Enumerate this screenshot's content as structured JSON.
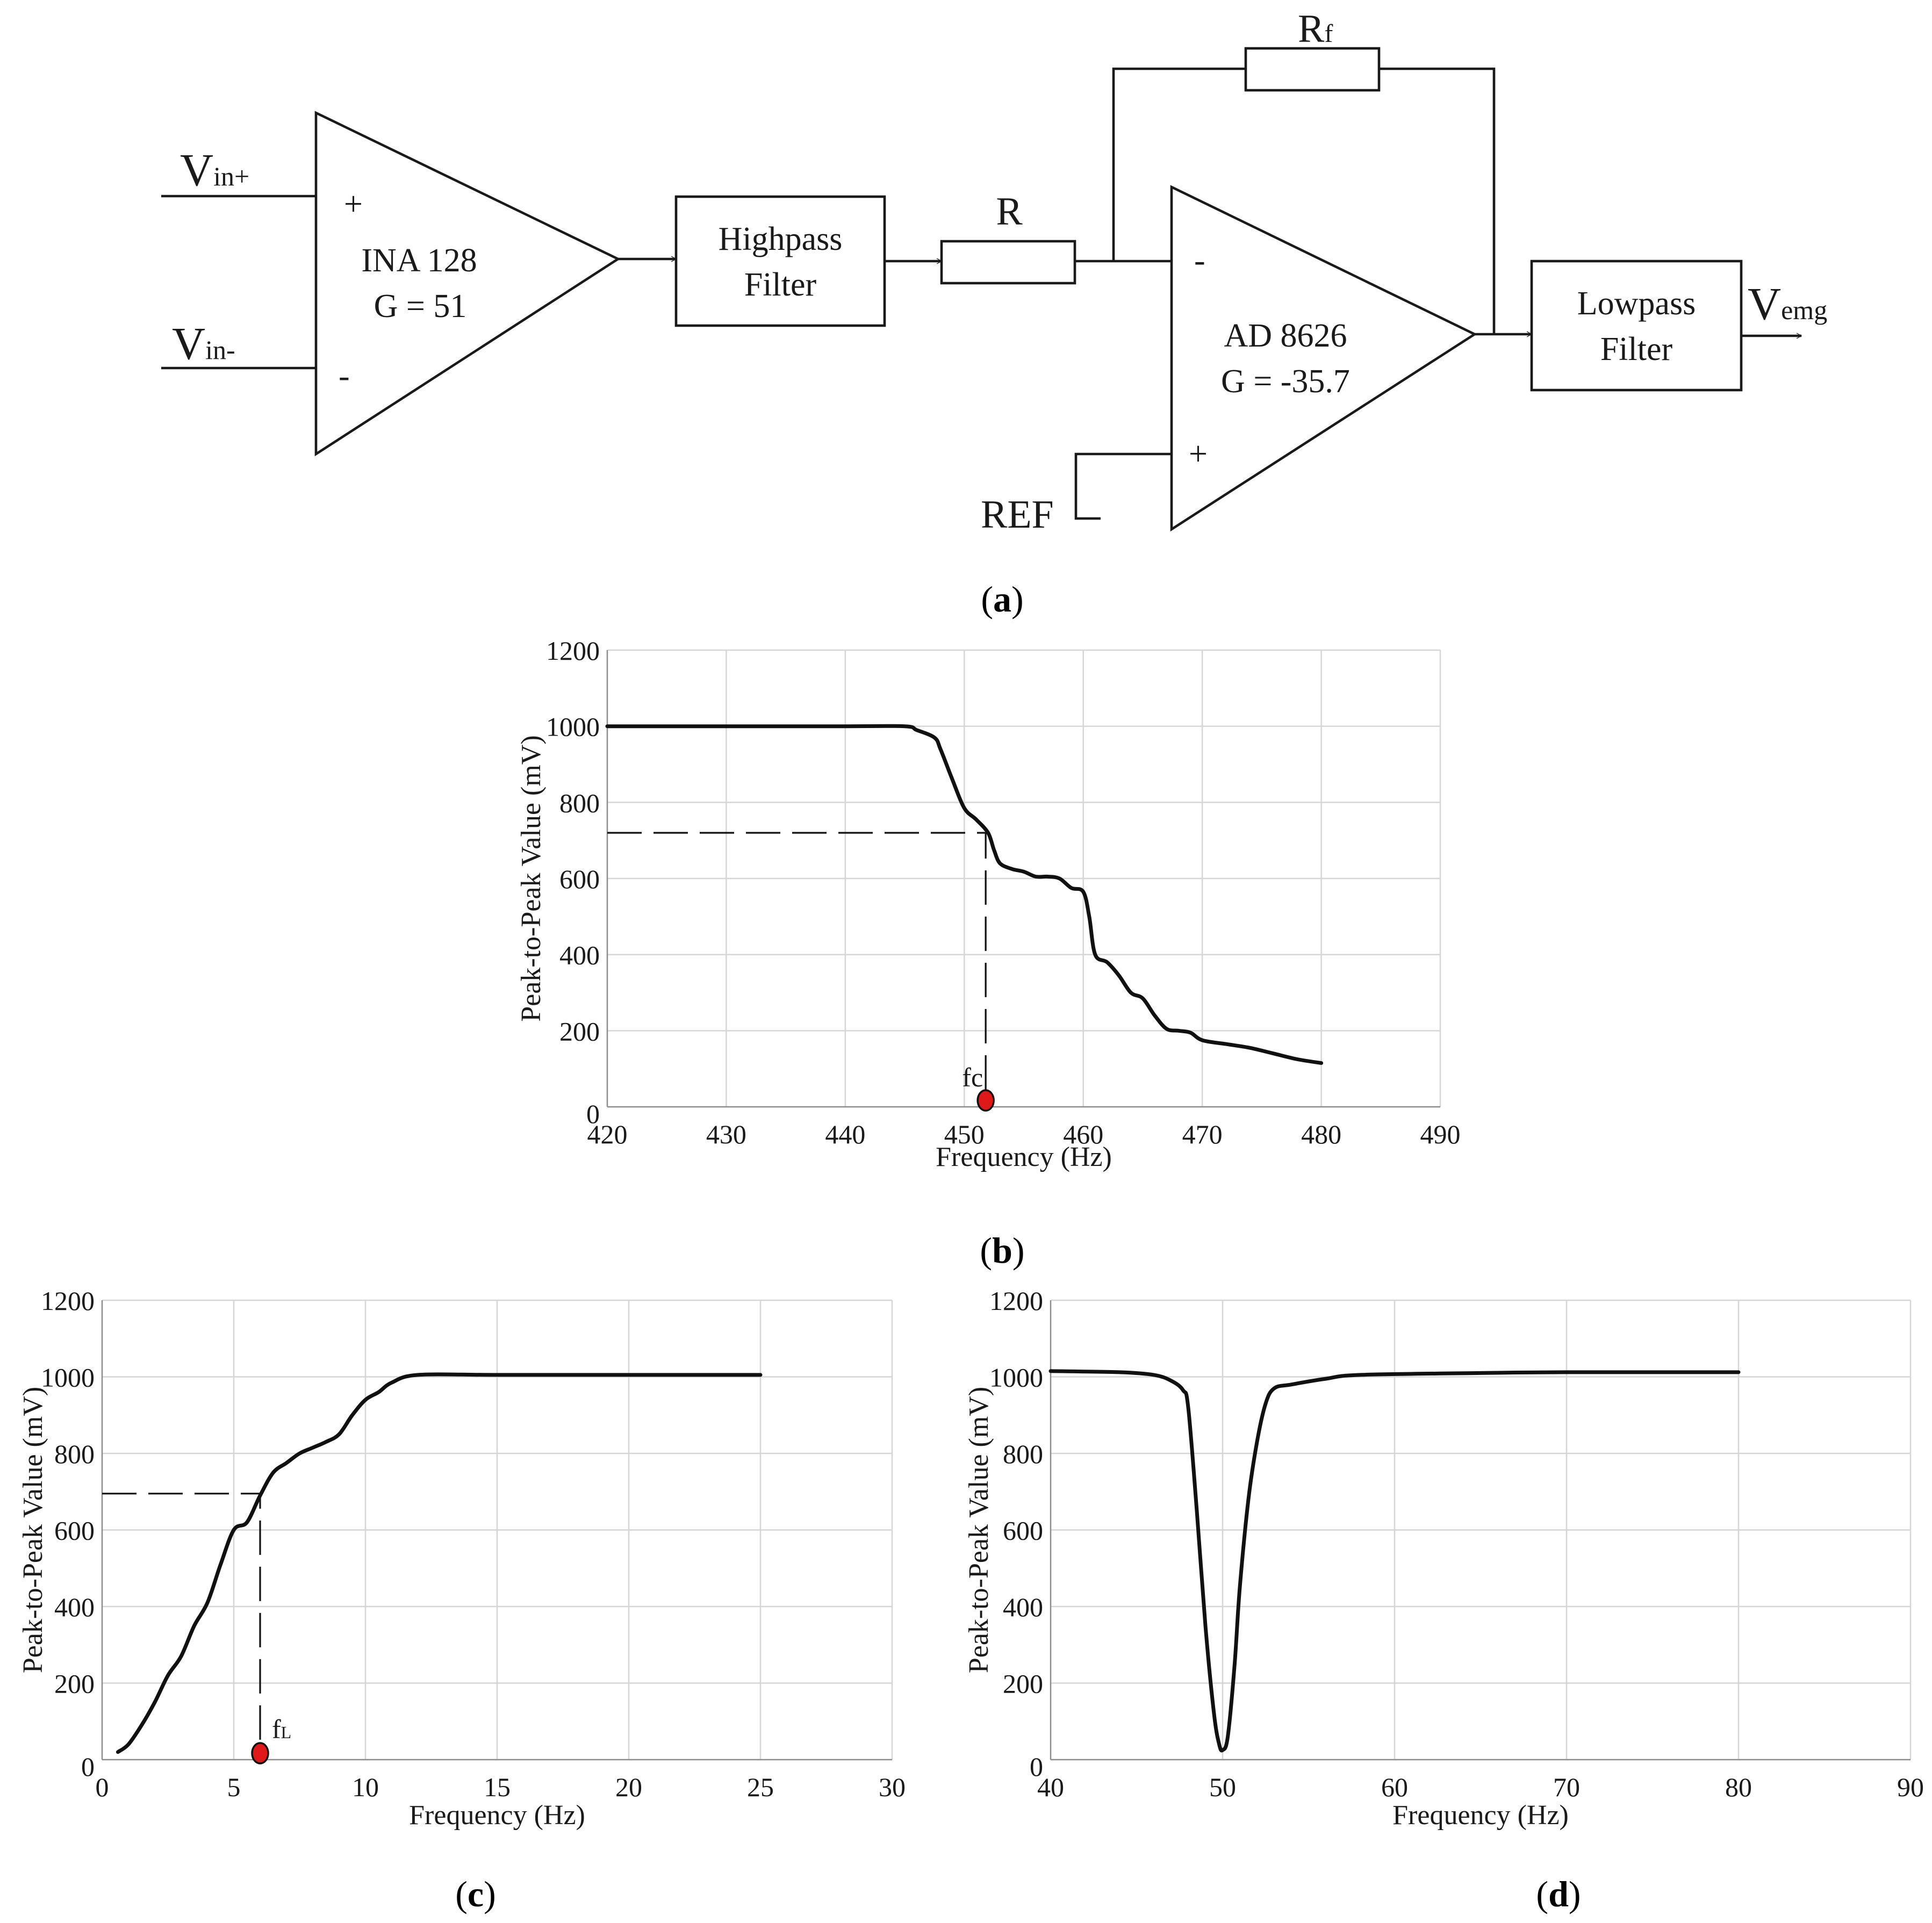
{
  "circuit": {
    "vin_plus": {
      "main": "V",
      "sub": "in+"
    },
    "vin_minus": {
      "main": "V",
      "sub": "in-"
    },
    "ina": {
      "name": "INA 128",
      "gain": "G = 51",
      "plus": "+",
      "minus": "-"
    },
    "highpass": {
      "line1": "Highpass",
      "line2": "Filter"
    },
    "resistor_r": "R",
    "resistor_rf": {
      "main": "R",
      "sub": "f"
    },
    "ad": {
      "name": "AD 8626",
      "gain": "G = -35.7",
      "plus": "+",
      "minus": "-"
    },
    "ref": "REF",
    "lowpass": {
      "line1": "Lowpass",
      "line2": "Filter"
    },
    "vemg": {
      "main": "V",
      "sub": "emg"
    }
  },
  "captions": {
    "a": "a",
    "b": "b",
    "c": "c",
    "d": "d"
  },
  "chart_data": [
    {
      "id": "b",
      "type": "line",
      "xlabel": "Frequency (Hz)",
      "ylabel": "Peak-to-Peak Value (mV)",
      "xlim": [
        420,
        490
      ],
      "ylim": [
        0,
        1200
      ],
      "xticks": [
        420,
        430,
        440,
        450,
        460,
        470,
        480,
        490
      ],
      "yticks": [
        0,
        200,
        400,
        600,
        800,
        1000,
        1200
      ],
      "grid": true,
      "series": [
        {
          "x": [
            420,
            440,
            445,
            446,
            447.5,
            448,
            449,
            450,
            451,
            452,
            452.5,
            453,
            454,
            455,
            456,
            457,
            458,
            459,
            460,
            460.5,
            461,
            462,
            463,
            464,
            465,
            466,
            467,
            468,
            469,
            470,
            472,
            474,
            476,
            478,
            480
          ],
          "y": [
            1000,
            1000,
            1000,
            990,
            970,
            940,
            860,
            785,
            755,
            720,
            675,
            640,
            625,
            618,
            605,
            605,
            600,
            575,
            565,
            500,
            400,
            380,
            345,
            300,
            285,
            240,
            205,
            200,
            195,
            175,
            165,
            155,
            140,
            125,
            115
          ]
        }
      ],
      "annotation": {
        "label": "fc",
        "x": 451.8,
        "y": 720
      }
    },
    {
      "id": "c",
      "type": "line",
      "xlabel": "Frequency (Hz)",
      "ylabel": "Peak-to-Peak Value (mV)",
      "xlim": [
        0,
        30
      ],
      "ylim": [
        0,
        1200
      ],
      "xticks": [
        0,
        5,
        10,
        15,
        20,
        25,
        30
      ],
      "yticks": [
        0,
        200,
        400,
        600,
        800,
        1000,
        1200
      ],
      "grid": true,
      "series": [
        {
          "x": [
            0.6,
            1,
            1.5,
            2,
            2.5,
            3,
            3.5,
            4,
            4.5,
            5,
            5.5,
            6,
            6.5,
            7,
            7.5,
            8,
            8.5,
            9,
            9.5,
            10,
            10.5,
            11,
            12,
            15,
            20,
            25
          ],
          "y": [
            20,
            40,
            90,
            150,
            220,
            270,
            350,
            410,
            510,
            600,
            620,
            690,
            750,
            775,
            800,
            815,
            830,
            850,
            900,
            940,
            960,
            985,
            1005,
            1005,
            1005,
            1005
          ]
        }
      ],
      "annotation": {
        "label": "f",
        "sub": "L",
        "x": 6,
        "y": 695
      }
    },
    {
      "id": "d",
      "type": "line",
      "xlabel": "Frequency (Hz)",
      "ylabel": "Peak-to-Peak Value (mV)",
      "xlim": [
        40,
        90
      ],
      "ylim": [
        0,
        1200
      ],
      "xticks": [
        40,
        50,
        60,
        70,
        80,
        90
      ],
      "yticks": [
        0,
        200,
        400,
        600,
        800,
        1000,
        1200
      ],
      "grid": true,
      "series": [
        {
          "x": [
            40,
            44,
            46,
            47,
            47.7,
            48,
            48.5,
            49,
            49.5,
            49.8,
            50,
            50.3,
            50.7,
            51,
            51.5,
            52,
            52.5,
            53,
            54,
            56,
            58,
            65,
            70,
            80
          ],
          "y": [
            1015,
            1012,
            1005,
            990,
            965,
            920,
            650,
            350,
            120,
            40,
            25,
            60,
            250,
            450,
            680,
            830,
            930,
            970,
            980,
            995,
            1005,
            1010,
            1012,
            1012
          ]
        }
      ]
    }
  ]
}
